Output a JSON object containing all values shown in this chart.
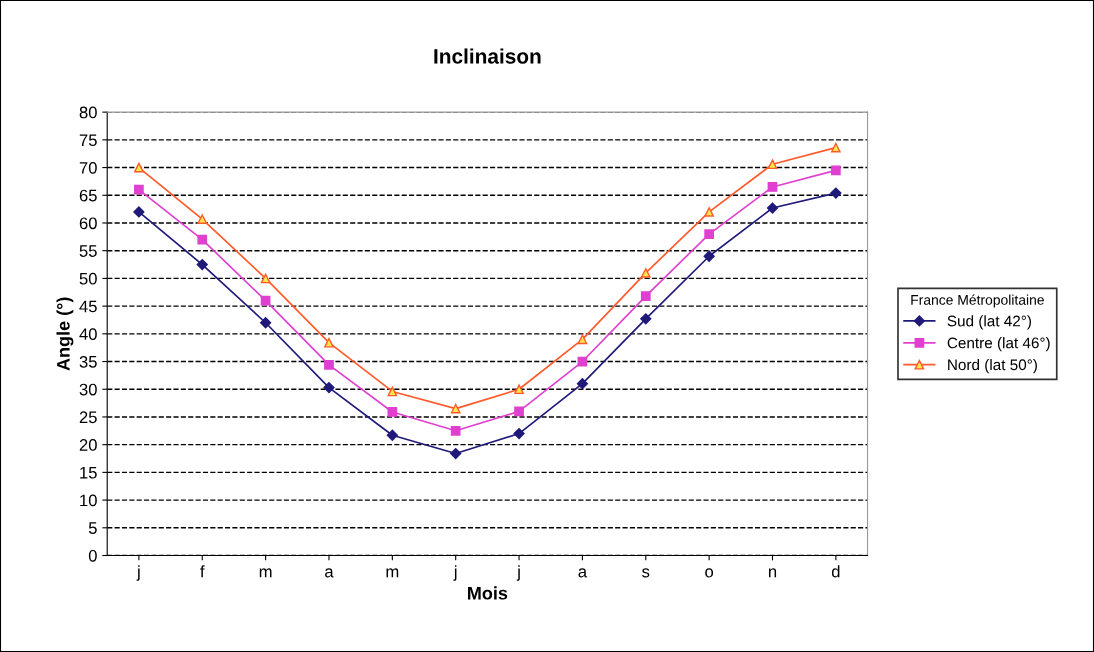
{
  "chart_data": {
    "type": "line",
    "title": "Inclinaison",
    "xlabel": "Mois",
    "ylabel": "Angle (°)",
    "legend_title": "France Métropolitaine",
    "categories": [
      "j",
      "f",
      "m",
      "a",
      "m",
      "j",
      "j",
      "a",
      "s",
      "o",
      "n",
      "d"
    ],
    "series": [
      {
        "name": "Sud (lat 42°)",
        "color": "#1f1a7a",
        "marker": "diamond",
        "values": [
          62,
          52.5,
          42,
          30.3,
          21.7,
          18.4,
          22,
          31,
          42.7,
          54,
          62.7,
          65.4
        ]
      },
      {
        "name": "Centre (lat 46°)",
        "color": "#e040d0",
        "marker": "square",
        "values": [
          66,
          57,
          46,
          34.4,
          25.9,
          22.5,
          26,
          35,
          46.8,
          58,
          66.5,
          69.5
        ]
      },
      {
        "name": "Nord (lat 50°)",
        "color": "#ff5a2a",
        "marker": "triangle",
        "values": [
          70,
          60.7,
          50,
          38.4,
          29.6,
          26.5,
          30,
          39,
          51,
          62,
          70.6,
          73.6
        ]
      }
    ],
    "ylim": [
      0,
      80
    ],
    "yticks": [
      0,
      5,
      10,
      15,
      20,
      25,
      30,
      35,
      40,
      45,
      50,
      55,
      60,
      65,
      70,
      75,
      80
    ],
    "grid": "y",
    "legend": "right",
    "line_style": "solid"
  }
}
